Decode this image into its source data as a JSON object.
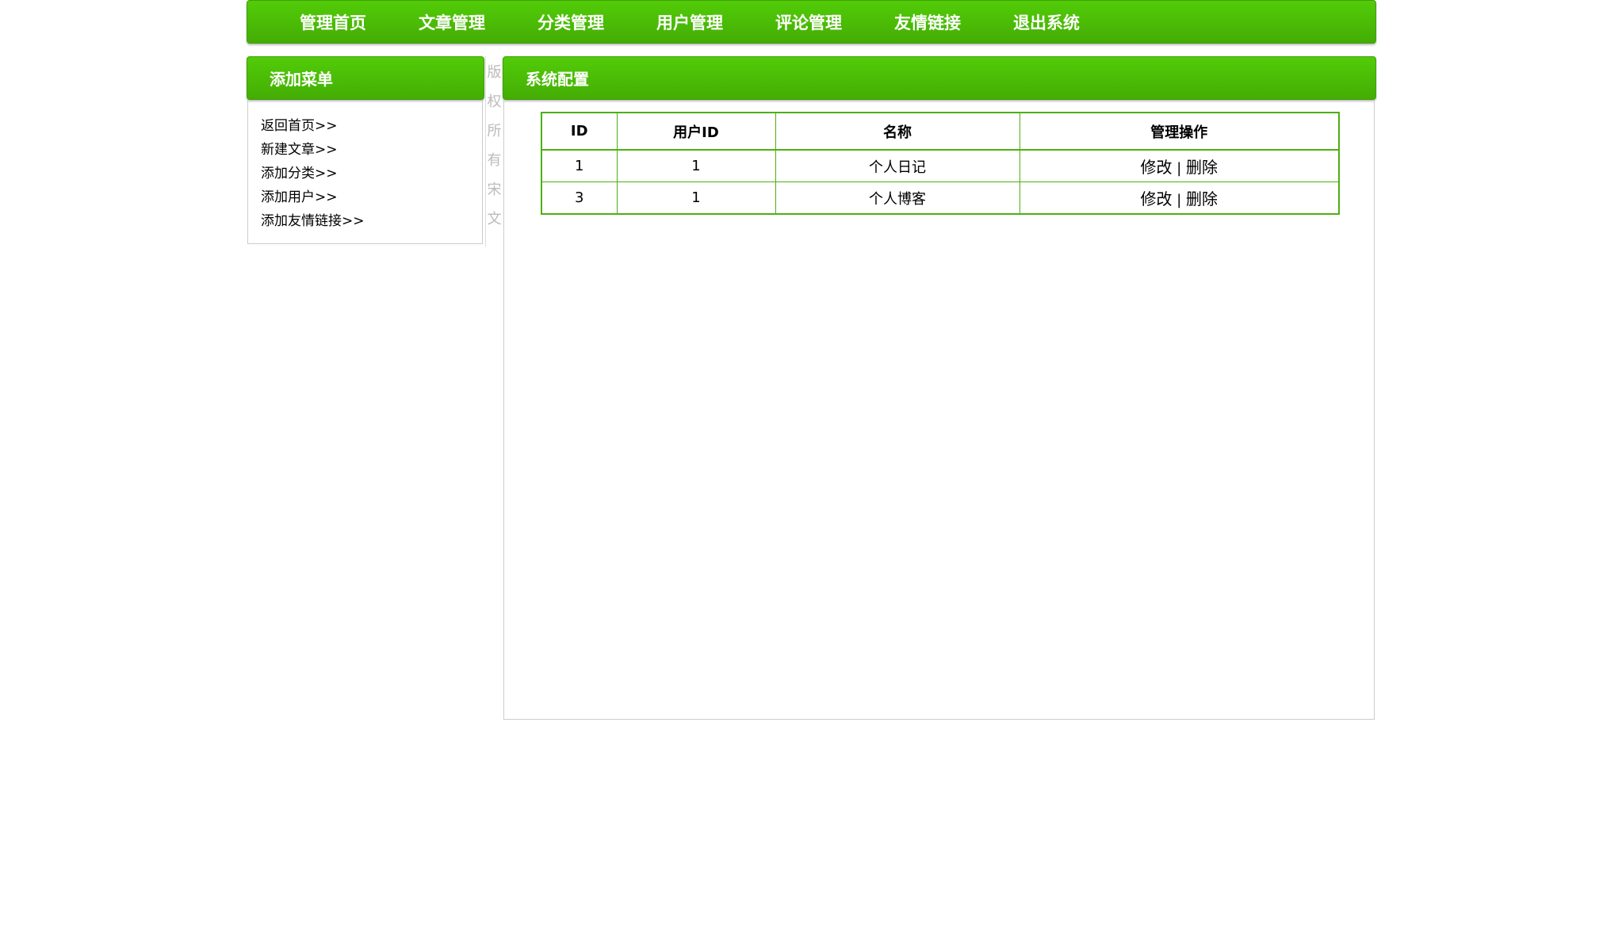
{
  "nav": {
    "items": [
      "管理首页",
      "文章管理",
      "分类管理",
      "用户管理",
      "评论管理",
      "友情链接",
      "退出系统"
    ]
  },
  "sidebar": {
    "title": "添加菜单",
    "links": [
      "返回首页>>",
      "新建文章>>",
      "添加分类>>",
      "添加用户>>",
      "添加友情链接>>"
    ]
  },
  "copyright_vertical": [
    "版",
    "权",
    "所",
    "有",
    "宋",
    "文"
  ],
  "main": {
    "title": "系统配置",
    "table": {
      "headers": [
        "ID",
        "用户ID",
        "名称",
        "管理操作"
      ],
      "rows": [
        {
          "id": "1",
          "user_id": "1",
          "name": "个人日记",
          "edit": "修改",
          "sep": "|",
          "delete": "删除"
        },
        {
          "id": "3",
          "user_id": "1",
          "name": "个人博客",
          "edit": "修改",
          "sep": "|",
          "delete": "删除"
        }
      ]
    }
  },
  "colors": {
    "accent": "#4cbf06",
    "border": "#4cb010"
  }
}
